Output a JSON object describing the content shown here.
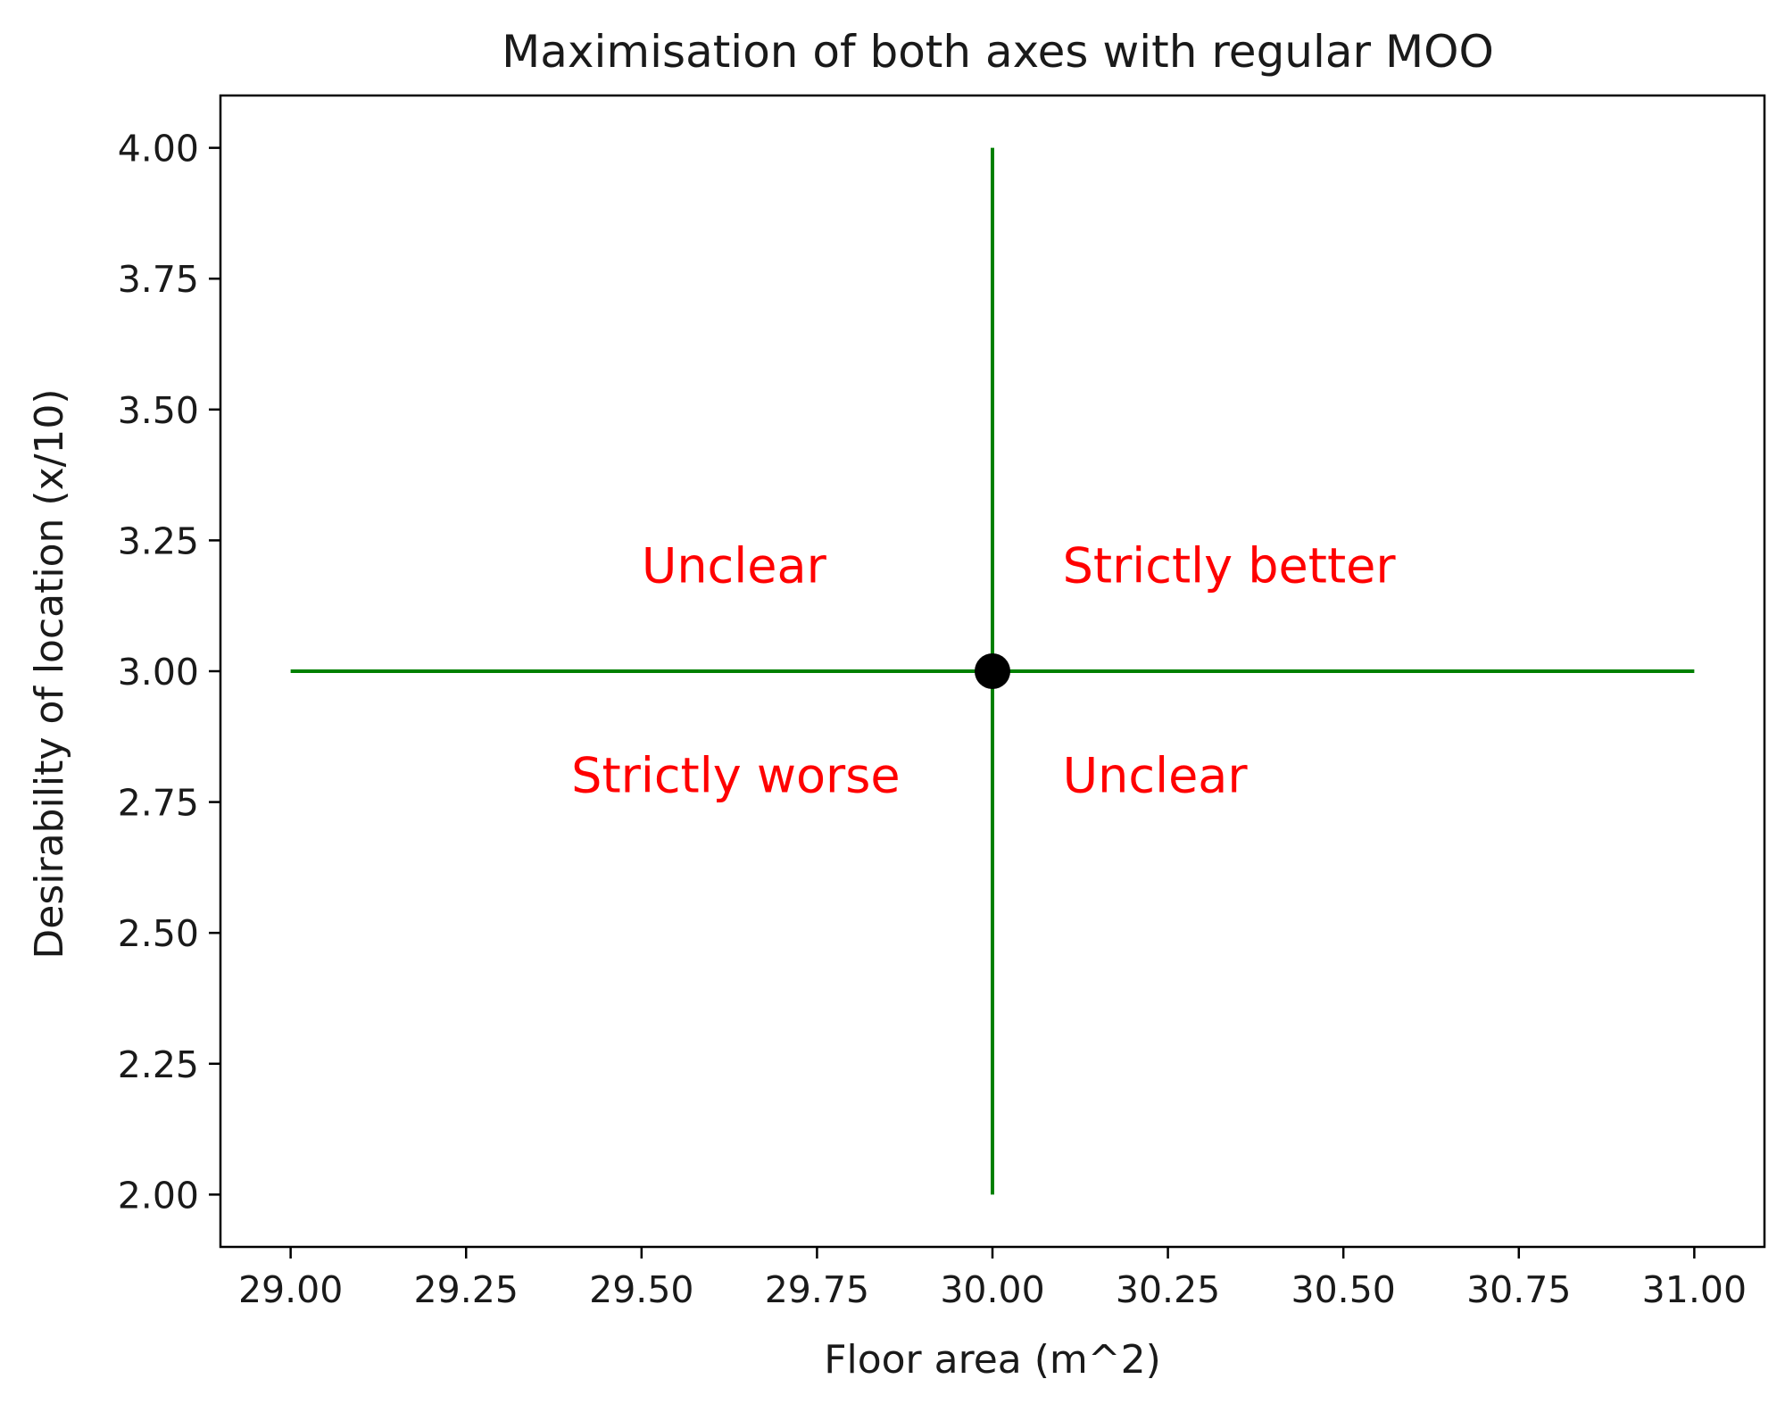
{
  "chart_data": {
    "type": "line",
    "title": "Maximisation of both axes with regular MOO",
    "xlabel": "Floor area (m^2)",
    "ylabel": "Desirability of location (x/10)",
    "xlim": [
      28.9,
      31.1
    ],
    "ylim": [
      1.9,
      4.1
    ],
    "xticks": [
      {
        "value": 29.0,
        "label": "29.00"
      },
      {
        "value": 29.25,
        "label": "29.25"
      },
      {
        "value": 29.5,
        "label": "29.50"
      },
      {
        "value": 29.75,
        "label": "29.75"
      },
      {
        "value": 30.0,
        "label": "30.00"
      },
      {
        "value": 30.25,
        "label": "30.25"
      },
      {
        "value": 30.5,
        "label": "30.50"
      },
      {
        "value": 30.75,
        "label": "30.75"
      },
      {
        "value": 31.0,
        "label": "31.00"
      }
    ],
    "yticks": [
      {
        "value": 2.0,
        "label": "2.00"
      },
      {
        "value": 2.25,
        "label": "2.25"
      },
      {
        "value": 2.5,
        "label": "2.50"
      },
      {
        "value": 2.75,
        "label": "2.75"
      },
      {
        "value": 3.0,
        "label": "3.00"
      },
      {
        "value": 3.25,
        "label": "3.25"
      },
      {
        "value": 3.5,
        "label": "3.50"
      },
      {
        "value": 3.75,
        "label": "3.75"
      },
      {
        "value": 4.0,
        "label": "4.00"
      }
    ],
    "grid": false,
    "series": [
      {
        "points": [
          [
            29.0,
            3.0
          ],
          [
            31.0,
            3.0
          ]
        ],
        "color": "#008000",
        "kind": "line"
      },
      {
        "points": [
          [
            30.0,
            2.0
          ],
          [
            30.0,
            4.0
          ]
        ],
        "color": "#008000",
        "kind": "line"
      },
      {
        "points": [
          [
            30.0,
            3.0
          ]
        ],
        "color": "#000000",
        "kind": "scatter"
      }
    ],
    "annotations": [
      {
        "text": "Unclear",
        "x": 29.5,
        "y": 3.2,
        "color": "#ff0000"
      },
      {
        "text": "Strictly better",
        "x": 30.1,
        "y": 3.2,
        "color": "#ff0000"
      },
      {
        "text": "Strictly worse",
        "x": 29.4,
        "y": 2.8,
        "color": "#ff0000"
      },
      {
        "text": "Unclear",
        "x": 30.1,
        "y": 2.8,
        "color": "#ff0000"
      }
    ]
  }
}
